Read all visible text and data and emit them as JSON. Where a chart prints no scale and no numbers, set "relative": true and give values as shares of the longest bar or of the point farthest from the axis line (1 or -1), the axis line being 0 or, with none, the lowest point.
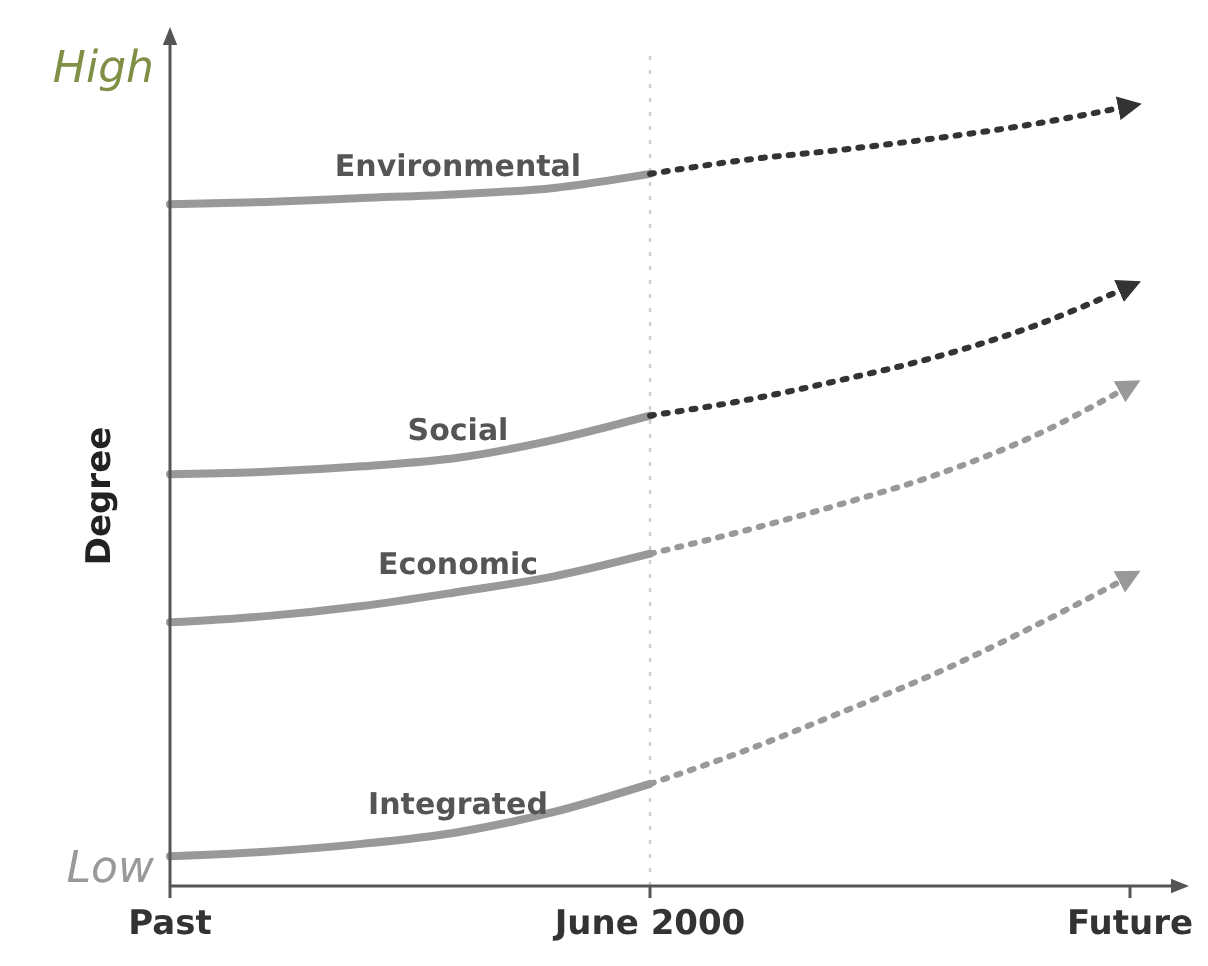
{
  "chart_data": {
    "type": "line",
    "relative": true,
    "ylabel": "Degree",
    "annotations": [
      "High",
      "Low"
    ],
    "grid": false,
    "marker": "none",
    "categories": [
      "Past",
      null,
      null,
      null,
      null,
      "June 2000",
      null,
      null,
      null,
      null,
      "Future"
    ],
    "ref_lines": [
      {
        "axis": "x",
        "value": "June 2000",
        "color": "#cccccc",
        "line_style": "dotted"
      }
    ],
    "series": [
      {
        "name": "Environmental",
        "color": "#999999",
        "line_style": "solid",
        "values": [
          0.874,
          0.877,
          0.882,
          0.887,
          0.895,
          0.913,
          null,
          null,
          null,
          null,
          null
        ]
      },
      {
        "color": "#333333",
        "line_style": "dotted",
        "values": [
          null,
          null,
          null,
          null,
          null,
          0.913,
          0.931,
          0.944,
          0.959,
          0.977,
          1
        ]
      },
      {
        "name": "Social",
        "color": "#999999",
        "line_style": "solid",
        "values": [
          0.528,
          0.531,
          0.538,
          0.549,
          0.572,
          0.603,
          null,
          null,
          null,
          null,
          null
        ]
      },
      {
        "color": "#333333",
        "line_style": "dotted",
        "values": [
          null,
          null,
          null,
          null,
          null,
          0.603,
          0.623,
          0.649,
          0.679,
          0.718,
          0.769
        ]
      },
      {
        "name": "Economic",
        "color": "#999999",
        "line_style": "solid",
        "values": [
          0.338,
          0.346,
          0.359,
          0.377,
          0.397,
          0.426,
          null,
          null,
          null,
          null,
          null
        ]
      },
      {
        "color": "#999999",
        "line_style": "dotted",
        "values": [
          null,
          null,
          null,
          null,
          null,
          0.426,
          0.456,
          0.49,
          0.528,
          0.577,
          0.641
        ]
      },
      {
        "name": "Integrated",
        "color": "#999999",
        "line_style": "solid",
        "values": [
          0.038,
          0.044,
          0.054,
          0.069,
          0.095,
          0.131,
          null,
          null,
          null,
          null,
          null
        ]
      },
      {
        "color": "#999999",
        "line_style": "dotted",
        "values": [
          null,
          null,
          null,
          null,
          null,
          0.131,
          0.174,
          0.223,
          0.274,
          0.333,
          0.397
        ]
      }
    ]
  }
}
